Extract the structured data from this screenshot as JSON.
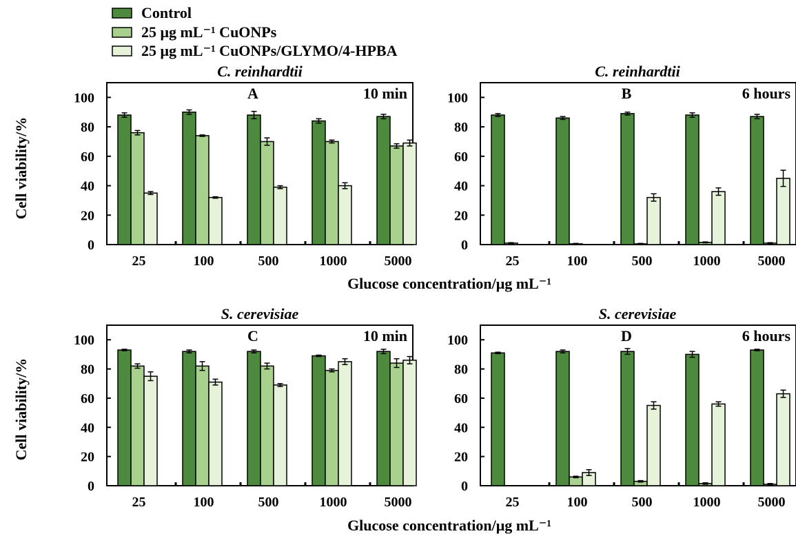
{
  "legend": [
    {
      "label": "Control",
      "color": "#4e8a3e"
    },
    {
      "label": "25 μg mL⁻¹ CuONPs",
      "color": "#a9d18e"
    },
    {
      "label": "25 μg mL⁻¹ CuONPs/GLYMO/4-HPBA",
      "color": "#e6f2da"
    }
  ],
  "y_axis_label": "Cell viability/%",
  "x_axis_label": "Glucose concentration/μg mL⁻¹",
  "chart_data": [
    {
      "type": "bar",
      "panel": "A",
      "title": "C. reinhardtii",
      "time": "10 min",
      "categories": [
        "25",
        "100",
        "500",
        "1000",
        "5000"
      ],
      "ylim": [
        0,
        110
      ],
      "yticks": [
        0,
        20,
        40,
        60,
        80,
        100
      ],
      "series": [
        {
          "name": "Control",
          "values": [
            88,
            90,
            88,
            84,
            87
          ],
          "errors": [
            1.5,
            1.5,
            2.5,
            1.5,
            1.5
          ]
        },
        {
          "name": "25 μg mL⁻¹ CuONPs",
          "values": [
            76,
            74,
            70,
            70,
            67
          ],
          "errors": [
            1.5,
            0.5,
            2.5,
            1,
            1.5
          ]
        },
        {
          "name": "25 μg mL⁻¹ CuONPs/GLYMO/4-HPBA",
          "values": [
            35,
            32,
            39,
            40,
            69
          ],
          "errors": [
            1,
            0.5,
            1,
            2,
            2
          ]
        }
      ]
    },
    {
      "type": "bar",
      "panel": "B",
      "title": "C. reinhardtii",
      "time": "6 hours",
      "categories": [
        "25",
        "100",
        "500",
        "1000",
        "5000"
      ],
      "ylim": [
        0,
        110
      ],
      "yticks": [
        0,
        20,
        40,
        60,
        80,
        100
      ],
      "series": [
        {
          "name": "Control",
          "values": [
            88,
            86,
            89,
            88,
            87
          ],
          "errors": [
            1,
            1,
            1,
            1.5,
            1.5
          ]
        },
        {
          "name": "25 μg mL⁻¹ CuONPs",
          "values": [
            1,
            0.5,
            0.5,
            1.5,
            1
          ],
          "errors": [
            0.3,
            0.3,
            0.3,
            0.3,
            0.3
          ]
        },
        {
          "name": "25 μg mL⁻¹ CuONPs/GLYMO/4-HPBA",
          "values": [
            0,
            0,
            32,
            36,
            45
          ],
          "errors": [
            0,
            0,
            2.5,
            2.5,
            5.5
          ]
        }
      ]
    },
    {
      "type": "bar",
      "panel": "C",
      "title": "S. cerevisiae",
      "time": "10 min",
      "categories": [
        "25",
        "100",
        "500",
        "1000",
        "5000"
      ],
      "ylim": [
        0,
        110
      ],
      "yticks": [
        0,
        20,
        40,
        60,
        80,
        100
      ],
      "series": [
        {
          "name": "Control",
          "values": [
            93,
            92,
            92,
            89,
            92
          ],
          "errors": [
            0.5,
            1,
            1,
            0.5,
            1.5
          ]
        },
        {
          "name": "25 μg mL⁻¹ CuONPs",
          "values": [
            82,
            82,
            82,
            79,
            84
          ],
          "errors": [
            1.5,
            3,
            2,
            1,
            3
          ]
        },
        {
          "name": "25 μg mL⁻¹ CuONPs/GLYMO/4-HPBA",
          "values": [
            75,
            71,
            69,
            85,
            86
          ],
          "errors": [
            3,
            2,
            1,
            2,
            2.5
          ]
        }
      ]
    },
    {
      "type": "bar",
      "panel": "D",
      "title": "S. cerevisiae",
      "time": "6 hours",
      "categories": [
        "25",
        "100",
        "500",
        "1000",
        "5000"
      ],
      "ylim": [
        0,
        110
      ],
      "yticks": [
        0,
        20,
        40,
        60,
        80,
        100
      ],
      "series": [
        {
          "name": "Control",
          "values": [
            91,
            92,
            92,
            90,
            93
          ],
          "errors": [
            0.5,
            1,
            2,
            2,
            0.5
          ]
        },
        {
          "name": "25 μg mL⁻¹ CuONPs",
          "values": [
            0,
            6,
            3,
            1.5,
            1
          ],
          "errors": [
            0,
            0.5,
            0.5,
            0.5,
            0.5
          ]
        },
        {
          "name": "25 μg mL⁻¹ CuONPs/GLYMO/4-HPBA",
          "values": [
            0,
            9,
            55,
            56,
            63
          ],
          "errors": [
            0,
            2,
            2.5,
            1.5,
            2.5
          ]
        }
      ]
    }
  ]
}
